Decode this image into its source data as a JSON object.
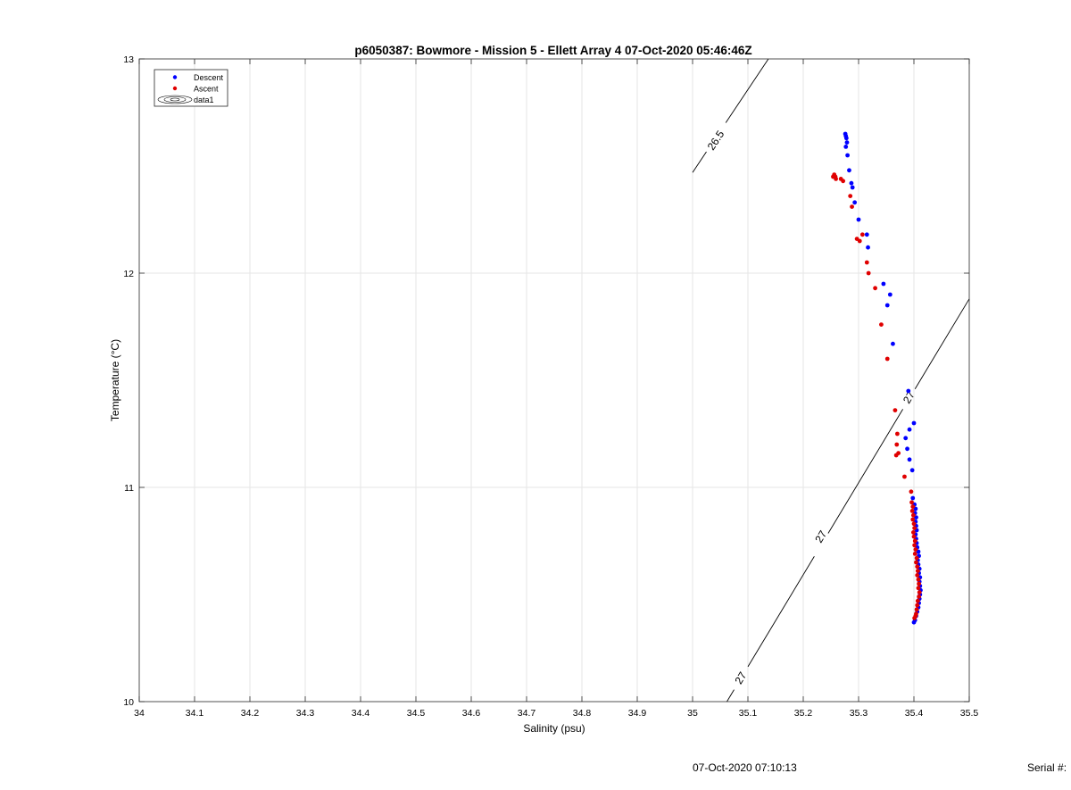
{
  "chart_data": {
    "type": "scatter",
    "title": "p6050387: Bowmore - Mission 5 - Ellett Array 4 07-Oct-2020 05:46:46Z",
    "xlabel": "Salinity (psu)",
    "ylabel": "Temperature (°C)",
    "xlim": [
      34,
      35.5
    ],
    "ylim": [
      10,
      13
    ],
    "x_ticks": [
      "34",
      "34.1",
      "34.2",
      "34.3",
      "34.4",
      "34.5",
      "34.6",
      "34.7",
      "34.8",
      "34.9",
      "35",
      "35.1",
      "35.2",
      "35.3",
      "35.4",
      "35.5"
    ],
    "y_ticks": [
      "10",
      "11",
      "12",
      "13"
    ],
    "grid": true,
    "legend_position": "top-left",
    "legend": [
      "Descent",
      "Ascent",
      "data1"
    ],
    "series": [
      {
        "name": "Descent",
        "color": "#0000ff",
        "marker": "dot",
        "points": [
          [
            35.276,
            12.65
          ],
          [
            35.277,
            12.64
          ],
          [
            35.278,
            12.63
          ],
          [
            35.279,
            12.61
          ],
          [
            35.277,
            12.59
          ],
          [
            35.28,
            12.55
          ],
          [
            35.283,
            12.48
          ],
          [
            35.287,
            12.42
          ],
          [
            35.289,
            12.4
          ],
          [
            35.293,
            12.33
          ],
          [
            35.3,
            12.25
          ],
          [
            35.315,
            12.18
          ],
          [
            35.317,
            12.12
          ],
          [
            35.345,
            11.95
          ],
          [
            35.357,
            11.9
          ],
          [
            35.352,
            11.85
          ],
          [
            35.362,
            11.67
          ],
          [
            35.39,
            11.45
          ],
          [
            35.4,
            11.3
          ],
          [
            35.392,
            11.27
          ],
          [
            35.385,
            11.23
          ],
          [
            35.388,
            11.18
          ],
          [
            35.392,
            11.13
          ],
          [
            35.397,
            11.08
          ],
          [
            35.398,
            10.95
          ],
          [
            35.401,
            10.92
          ],
          [
            35.403,
            10.9
          ],
          [
            35.402,
            10.88
          ],
          [
            35.404,
            10.86
          ],
          [
            35.403,
            10.84
          ],
          [
            35.404,
            10.82
          ],
          [
            35.405,
            10.8
          ],
          [
            35.403,
            10.78
          ],
          [
            35.404,
            10.76
          ],
          [
            35.405,
            10.74
          ],
          [
            35.406,
            10.72
          ],
          [
            35.408,
            10.7
          ],
          [
            35.409,
            10.68
          ],
          [
            35.407,
            10.66
          ],
          [
            35.408,
            10.64
          ],
          [
            35.41,
            10.62
          ],
          [
            35.409,
            10.6
          ],
          [
            35.411,
            10.58
          ],
          [
            35.41,
            10.56
          ],
          [
            35.411,
            10.54
          ],
          [
            35.412,
            10.52
          ],
          [
            35.411,
            10.5
          ],
          [
            35.41,
            10.48
          ],
          [
            35.409,
            10.46
          ],
          [
            35.408,
            10.44
          ],
          [
            35.406,
            10.42
          ],
          [
            35.404,
            10.4
          ],
          [
            35.402,
            10.38
          ],
          [
            35.4,
            10.37
          ]
        ]
      },
      {
        "name": "Ascent",
        "color": "#e00000",
        "marker": "dot",
        "points": [
          [
            35.254,
            12.45
          ],
          [
            35.256,
            12.46
          ],
          [
            35.258,
            12.45
          ],
          [
            35.259,
            12.44
          ],
          [
            35.268,
            12.44
          ],
          [
            35.272,
            12.43
          ],
          [
            35.285,
            12.36
          ],
          [
            35.288,
            12.31
          ],
          [
            35.307,
            12.18
          ],
          [
            35.297,
            12.16
          ],
          [
            35.302,
            12.15
          ],
          [
            35.315,
            12.05
          ],
          [
            35.318,
            12.0
          ],
          [
            35.33,
            11.93
          ],
          [
            35.341,
            11.76
          ],
          [
            35.352,
            11.6
          ],
          [
            35.366,
            11.36
          ],
          [
            35.37,
            11.25
          ],
          [
            35.369,
            11.2
          ],
          [
            35.372,
            11.16
          ],
          [
            35.368,
            11.15
          ],
          [
            35.383,
            11.05
          ],
          [
            35.395,
            10.98
          ],
          [
            35.396,
            10.93
          ],
          [
            35.398,
            10.91
          ],
          [
            35.397,
            10.89
          ],
          [
            35.399,
            10.87
          ],
          [
            35.398,
            10.85
          ],
          [
            35.4,
            10.83
          ],
          [
            35.401,
            10.81
          ],
          [
            35.399,
            10.79
          ],
          [
            35.4,
            10.77
          ],
          [
            35.402,
            10.75
          ],
          [
            35.401,
            10.73
          ],
          [
            35.403,
            10.71
          ],
          [
            35.402,
            10.69
          ],
          [
            35.405,
            10.67
          ],
          [
            35.404,
            10.65
          ],
          [
            35.406,
            10.63
          ],
          [
            35.407,
            10.61
          ],
          [
            35.406,
            10.59
          ],
          [
            35.408,
            10.57
          ],
          [
            35.409,
            10.55
          ],
          [
            35.408,
            10.53
          ],
          [
            35.41,
            10.51
          ],
          [
            35.409,
            10.49
          ],
          [
            35.407,
            10.47
          ],
          [
            35.406,
            10.45
          ],
          [
            35.405,
            10.43
          ],
          [
            35.404,
            10.41
          ],
          [
            35.403,
            10.4
          ],
          [
            35.401,
            10.39
          ]
        ]
      }
    ],
    "contours": [
      {
        "label": "26.5",
        "color": "#000000",
        "from": [
          35.0,
          12.47
        ],
        "to": [
          35.137,
          13.0
        ],
        "label_at": [
          35.042,
          12.62
        ],
        "gap": [
          35.025,
          35.06
        ]
      },
      {
        "label": "27",
        "color": "#000000",
        "from": [
          35.062,
          10.0
        ],
        "to": [
          35.5,
          11.88
        ],
        "label_positions": [
          [
            35.087,
            10.11
          ],
          [
            35.232,
            10.77
          ],
          [
            35.391,
            11.42
          ]
        ],
        "gaps": [
          [
            35.075,
            35.1
          ],
          [
            35.22,
            35.245
          ],
          [
            35.38,
            35.402
          ]
        ]
      }
    ]
  },
  "footer": {
    "timestamp": "07-Oct-2020 07:10:13",
    "serial": "Serial #:"
  }
}
